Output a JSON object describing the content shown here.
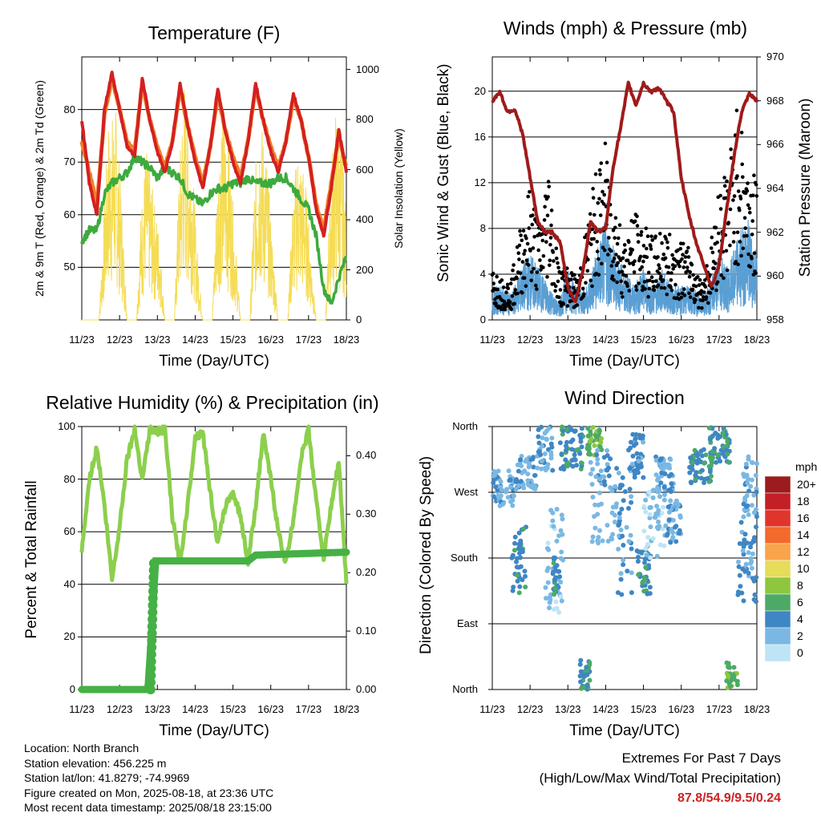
{
  "panels": {
    "temperature": {
      "title": "Temperature (F)",
      "xlabel": "Time (Day/UTC)",
      "ylabel_left": "2m & 9m T (Red, Orange) & 2m Td (Green)",
      "ylabel_right": "Solar Insolation (Yellow)"
    },
    "winds": {
      "title": "Winds (mph) & Pressure (mb)",
      "xlabel": "Time (Day/UTC)",
      "ylabel_left": "Sonic Wind & Gust (Blue, Black)",
      "ylabel_right": "Station Pressure (Maroon)"
    },
    "humidity": {
      "title": "Relative Humidity (%) & Precipitation (in)",
      "xlabel": "Time (Day/UTC)",
      "ylabel_left": "Percent & Total Rainfall"
    },
    "direction": {
      "title": "Wind Direction",
      "xlabel": "Time (Day/UTC)",
      "ylabel_left": "Direction (Colored By Speed)"
    }
  },
  "info": {
    "location": "Location: North Branch",
    "elevation": "Station elevation: 456.225 m",
    "latlon": "Station lat/lon: 41.8279; -74.9969",
    "created": "Figure created on Mon, 2025-08-18, at 23:36 UTC",
    "latest": "Most recent data timestamp: 2025/08/18 23:15:00"
  },
  "extremes": {
    "line1": "Extremes For Past 7 Days",
    "line2": "(High/Low/Max Wind/Total Precipitation)",
    "values": "87.8/54.9/9.5/0.24"
  },
  "legend": {
    "title": "mph",
    "labels": [
      "20+",
      "18",
      "16",
      "14",
      "12",
      "10",
      "8",
      "6",
      "4",
      "2",
      "0"
    ],
    "colors": [
      "#9b1b1e",
      "#c22026",
      "#e0352b",
      "#f26a2c",
      "#f9a34a",
      "#e5dc5a",
      "#8dc63f",
      "#4caa66",
      "#3f86c4",
      "#7ab8e3",
      "#bfe4f6"
    ]
  },
  "colors": {
    "temp2m": "#d42020",
    "temp9m": "#f07f2a",
    "dewpoint": "#3daa3d",
    "solar": "#f5dc55",
    "wind": "#5a9fd4",
    "gust": "#000000",
    "pressure": "#a01a1a",
    "rh": "#8ccf4d",
    "precip": "#45b045"
  },
  "chart_data": [
    {
      "type": "line",
      "id": "temperature",
      "title": "Temperature (F)",
      "xlabel": "Time (Day/UTC)",
      "ylabel": "2m & 9m T (Red, Orange) & 2m Td (Green)",
      "y2label": "Solar Insolation (Yellow)",
      "xticks": [
        "11/23",
        "12/23",
        "13/23",
        "14/23",
        "15/23",
        "16/23",
        "17/23",
        "18/23"
      ],
      "xlim": [
        0,
        7
      ],
      "ylim": [
        40,
        90
      ],
      "yticks": [
        50,
        60,
        70,
        80
      ],
      "y2lim": [
        0,
        1050
      ],
      "y2ticks": [
        0,
        200,
        400,
        600,
        800,
        1000
      ],
      "series": [
        {
          "name": "2m T",
          "axis": "left",
          "x": [
            0,
            0.2,
            0.4,
            0.6,
            0.8,
            1.0,
            1.2,
            1.4,
            1.6,
            1.8,
            2.0,
            2.2,
            2.4,
            2.6,
            2.8,
            3.0,
            3.2,
            3.4,
            3.6,
            3.8,
            4.0,
            4.2,
            4.4,
            4.6,
            4.8,
            5.0,
            5.2,
            5.4,
            5.6,
            5.8,
            6.0,
            6.2,
            6.4,
            6.6,
            6.8,
            7.0
          ],
          "values": [
            78,
            66,
            60,
            80,
            87,
            80,
            73,
            71,
            86,
            78,
            72,
            68,
            74,
            85,
            77,
            70,
            65,
            73,
            84,
            76,
            70,
            66,
            74,
            85,
            78,
            72,
            68,
            74,
            83,
            78,
            71,
            61,
            56,
            65,
            76,
            68
          ]
        },
        {
          "name": "9m T",
          "axis": "left",
          "x": [
            0,
            0.2,
            0.4,
            0.6,
            0.8,
            1.0,
            1.2,
            1.4,
            1.6,
            1.8,
            2.0,
            2.2,
            2.4,
            2.6,
            2.8,
            3.0,
            3.2,
            3.4,
            3.6,
            3.8,
            4.0,
            4.2,
            4.4,
            4.6,
            4.8,
            5.0,
            5.2,
            5.4,
            5.6,
            5.8,
            6.0,
            6.2,
            6.4,
            6.6,
            6.8,
            7.0
          ],
          "values": [
            74,
            68,
            62,
            79,
            86,
            80,
            74,
            72,
            85,
            78,
            73,
            69,
            74,
            84,
            77,
            71,
            66,
            73,
            83,
            76,
            71,
            67,
            74,
            84,
            78,
            73,
            69,
            74,
            82,
            78,
            71,
            62,
            57,
            66,
            75,
            69
          ]
        },
        {
          "name": "2m Td",
          "axis": "left",
          "x": [
            0,
            0.2,
            0.4,
            0.6,
            0.8,
            1.0,
            1.2,
            1.4,
            1.6,
            1.8,
            2.0,
            2.2,
            2.4,
            2.6,
            2.8,
            3.0,
            3.2,
            3.4,
            3.6,
            3.8,
            4.0,
            4.2,
            4.4,
            4.6,
            4.8,
            5.0,
            5.2,
            5.4,
            5.6,
            5.8,
            6.0,
            6.2,
            6.4,
            6.6,
            6.8,
            7.0
          ],
          "values": [
            55,
            57,
            57,
            64,
            66,
            67,
            68,
            71,
            70,
            69,
            67,
            69,
            68,
            67,
            64,
            63,
            62,
            64,
            65,
            65,
            66,
            66,
            67,
            66,
            66,
            66,
            67,
            67,
            65,
            63,
            61,
            56,
            46,
            43,
            48,
            52
          ]
        },
        {
          "name": "Solar Insolation",
          "axis": "right",
          "x": [
            0,
            0.45,
            0.55,
            0.7,
            0.9,
            1.05,
            1.2,
            1.45,
            1.55,
            1.7,
            1.9,
            2.05,
            2.2,
            2.45,
            2.55,
            2.7,
            2.9,
            3.05,
            3.2,
            3.45,
            3.55,
            3.7,
            3.9,
            4.05,
            4.2,
            4.45,
            4.55,
            4.7,
            4.9,
            5.05,
            5.2,
            5.45,
            5.55,
            5.7,
            5.9,
            6.05,
            6.2,
            6.45,
            6.55,
            6.7,
            6.9,
            7.0
          ],
          "values": [
            0,
            0,
            300,
            800,
            850,
            500,
            0,
            0,
            400,
            700,
            500,
            350,
            0,
            0,
            500,
            1000,
            700,
            300,
            0,
            0,
            450,
            900,
            700,
            350,
            0,
            0,
            500,
            850,
            650,
            300,
            0,
            0,
            400,
            700,
            600,
            300,
            0,
            0,
            500,
            850,
            700,
            400
          ]
        }
      ]
    },
    {
      "type": "line",
      "id": "winds",
      "title": "Winds (mph) & Pressure (mb)",
      "xlabel": "Time (Day/UTC)",
      "ylabel": "Sonic Wind & Gust (Blue, Black)",
      "y2label": "Station Pressure (Maroon)",
      "xticks": [
        "11/23",
        "12/23",
        "13/23",
        "14/23",
        "15/23",
        "16/23",
        "17/23",
        "18/23"
      ],
      "xlim": [
        0,
        7
      ],
      "ylim": [
        0,
        23
      ],
      "yticks": [
        0,
        4,
        8,
        12,
        16,
        20
      ],
      "y2lim": [
        958,
        970
      ],
      "y2ticks": [
        958,
        960,
        962,
        964,
        966,
        968,
        970
      ],
      "series": [
        {
          "name": "Sonic Wind",
          "axis": "left",
          "x": [
            0,
            0.25,
            0.5,
            0.75,
            1.0,
            1.25,
            1.5,
            1.75,
            2.0,
            2.25,
            2.5,
            2.75,
            3.0,
            3.25,
            3.5,
            3.75,
            4.0,
            4.25,
            4.5,
            4.75,
            5.0,
            5.25,
            5.5,
            5.75,
            6.0,
            6.25,
            6.5,
            6.75,
            7.0
          ],
          "values": [
            2,
            2,
            1.5,
            3,
            4,
            3,
            2,
            1,
            3,
            2,
            2,
            4,
            6,
            4,
            3,
            2,
            3,
            2,
            3,
            2,
            2,
            2,
            1.5,
            2,
            4,
            3,
            5,
            6,
            4
          ]
        },
        {
          "name": "Gust",
          "axis": "left",
          "x": [
            0,
            0.25,
            0.5,
            0.75,
            1.0,
            1.25,
            1.5,
            1.75,
            2.0,
            2.25,
            2.5,
            2.75,
            3.0,
            3.25,
            3.5,
            3.75,
            4.0,
            4.25,
            4.5,
            4.75,
            5.0,
            5.25,
            5.5,
            5.75,
            6.0,
            6.25,
            6.5,
            6.75,
            7.0
          ],
          "values": [
            4,
            3,
            3,
            7,
            10,
            7,
            12,
            4,
            4,
            3,
            7,
            11,
            13,
            9,
            6,
            8,
            7,
            6,
            7,
            6,
            6,
            5,
            3,
            5,
            10,
            12,
            16,
            12,
            10
          ]
        },
        {
          "name": "Station Pressure",
          "axis": "right",
          "x": [
            0,
            0.2,
            0.4,
            0.6,
            0.8,
            1.0,
            1.2,
            1.4,
            1.6,
            1.8,
            2.0,
            2.2,
            2.4,
            2.6,
            2.8,
            3.0,
            3.2,
            3.4,
            3.6,
            3.8,
            4.0,
            4.2,
            4.4,
            4.6,
            4.8,
            5.0,
            5.2,
            5.4,
            5.6,
            5.8,
            6.0,
            6.2,
            6.4,
            6.6,
            6.8,
            7.0
          ],
          "values": [
            968,
            968.4,
            967.5,
            967.6,
            966.5,
            964.5,
            962.5,
            962,
            962,
            961.5,
            959.5,
            958.8,
            960.3,
            962.5,
            962,
            962.2,
            965,
            966.8,
            968.8,
            967.8,
            968.8,
            968.4,
            968.6,
            968,
            967.5,
            964.5,
            962.8,
            961.5,
            960.5,
            959.5,
            960.5,
            963,
            965.5,
            967.5,
            968.3,
            968
          ]
        }
      ]
    },
    {
      "type": "line",
      "id": "humidity",
      "title": "Relative Humidity (%) & Precipitation (in)",
      "xlabel": "Time (Day/UTC)",
      "ylabel": "Percent & Total Rainfall",
      "xticks": [
        "11/23",
        "12/23",
        "13/23",
        "14/23",
        "15/23",
        "16/23",
        "17/23",
        "18/23"
      ],
      "xlim": [
        0,
        7
      ],
      "ylim": [
        0,
        100
      ],
      "yticks": [
        0,
        20,
        40,
        60,
        80,
        100
      ],
      "y2lim": [
        0,
        0.45
      ],
      "y2ticks": [
        0.0,
        0.1,
        0.2,
        0.3,
        0.4
      ],
      "y2ticklabels": [
        "0.00",
        "0.10",
        "0.20",
        "0.30",
        "0.40"
      ],
      "series": [
        {
          "name": "Relative Humidity",
          "axis": "left",
          "x": [
            0,
            0.2,
            0.4,
            0.6,
            0.8,
            1.0,
            1.2,
            1.4,
            1.6,
            1.8,
            2.0,
            2.2,
            2.4,
            2.6,
            2.8,
            3.0,
            3.2,
            3.4,
            3.6,
            3.8,
            4.0,
            4.2,
            4.4,
            4.6,
            4.8,
            5.0,
            5.2,
            5.4,
            5.6,
            5.8,
            6.0,
            6.2,
            6.4,
            6.6,
            6.8,
            7.0
          ],
          "values": [
            52,
            80,
            92,
            70,
            42,
            62,
            88,
            99,
            80,
            99,
            98,
            99,
            65,
            48,
            70,
            96,
            98,
            75,
            55,
            70,
            75,
            66,
            48,
            70,
            97,
            80,
            60,
            48,
            65,
            88,
            99,
            72,
            50,
            70,
            87,
            40
          ]
        },
        {
          "name": "Total Rainfall",
          "axis": "right",
          "x": [
            0,
            1.4,
            1.75,
            1.85,
            1.95,
            2.2,
            4.4,
            4.6,
            7.0
          ],
          "values": [
            0,
            0,
            0,
            0.1,
            0.22,
            0.22,
            0.22,
            0.23,
            0.235
          ]
        }
      ]
    },
    {
      "type": "scatter",
      "id": "direction",
      "title": "Wind Direction",
      "xlabel": "Time (Day/UTC)",
      "ylabel": "Direction (Colored By Speed)",
      "xticks": [
        "11/23",
        "12/23",
        "13/23",
        "14/23",
        "15/23",
        "16/23",
        "17/23",
        "18/23"
      ],
      "xlim": [
        0,
        7
      ],
      "ylim": [
        0,
        360
      ],
      "yticklabels": [
        "North",
        "East",
        "South",
        "West",
        "North"
      ],
      "legend_title": "mph",
      "legend_placement": "right",
      "clusters": [
        {
          "x": [
            0,
            0.6
          ],
          "dir": [
            250,
            300
          ],
          "speed": 2
        },
        {
          "x": [
            0.5,
            0.9
          ],
          "dir": [
            130,
            230
          ],
          "speed": 4
        },
        {
          "x": [
            0.6,
            1.2
          ],
          "dir": [
            270,
            320
          ],
          "speed": 2
        },
        {
          "x": [
            1.2,
            1.6
          ],
          "dir": [
            300,
            360
          ],
          "speed": 2
        },
        {
          "x": [
            1.4,
            1.9
          ],
          "dir": [
            100,
            250
          ],
          "speed": 1
        },
        {
          "x": [
            1.6,
            1.8
          ],
          "dir": [
            130,
            190
          ],
          "speed": 4
        },
        {
          "x": [
            1.8,
            2.4
          ],
          "dir": [
            300,
            360
          ],
          "speed": 4
        },
        {
          "x": [
            2.3,
            2.6
          ],
          "dir": [
            0,
            40
          ],
          "speed": 4
        },
        {
          "x": [
            2.5,
            2.9
          ],
          "dir": [
            320,
            360
          ],
          "speed": 6
        },
        {
          "x": [
            2.6,
            3.3
          ],
          "dir": [
            200,
            330
          ],
          "speed": 2
        },
        {
          "x": [
            3.3,
            3.7
          ],
          "dir": [
            130,
            300
          ],
          "speed": 3
        },
        {
          "x": [
            3.6,
            4.0
          ],
          "dir": [
            290,
            350
          ],
          "speed": 3
        },
        {
          "x": [
            3.8,
            4.2
          ],
          "dir": [
            130,
            190
          ],
          "speed": 4
        },
        {
          "x": [
            4.0,
            4.6
          ],
          "dir": [
            180,
            280
          ],
          "speed": 1
        },
        {
          "x": [
            4.3,
            4.8
          ],
          "dir": [
            270,
            320
          ],
          "speed": 2
        },
        {
          "x": [
            4.6,
            5.0
          ],
          "dir": [
            200,
            260
          ],
          "speed": 2
        },
        {
          "x": [
            5.2,
            5.8
          ],
          "dir": [
            280,
            330
          ],
          "speed": 4
        },
        {
          "x": [
            5.7,
            6.3
          ],
          "dir": [
            310,
            360
          ],
          "speed": 4
        },
        {
          "x": [
            6.2,
            6.5
          ],
          "dir": [
            0,
            40
          ],
          "speed": 6
        },
        {
          "x": [
            6.5,
            7.0
          ],
          "dir": [
            120,
            230
          ],
          "speed": 3
        },
        {
          "x": [
            6.6,
            7.0
          ],
          "dir": [
            230,
            320
          ],
          "speed": 2
        }
      ]
    }
  ]
}
